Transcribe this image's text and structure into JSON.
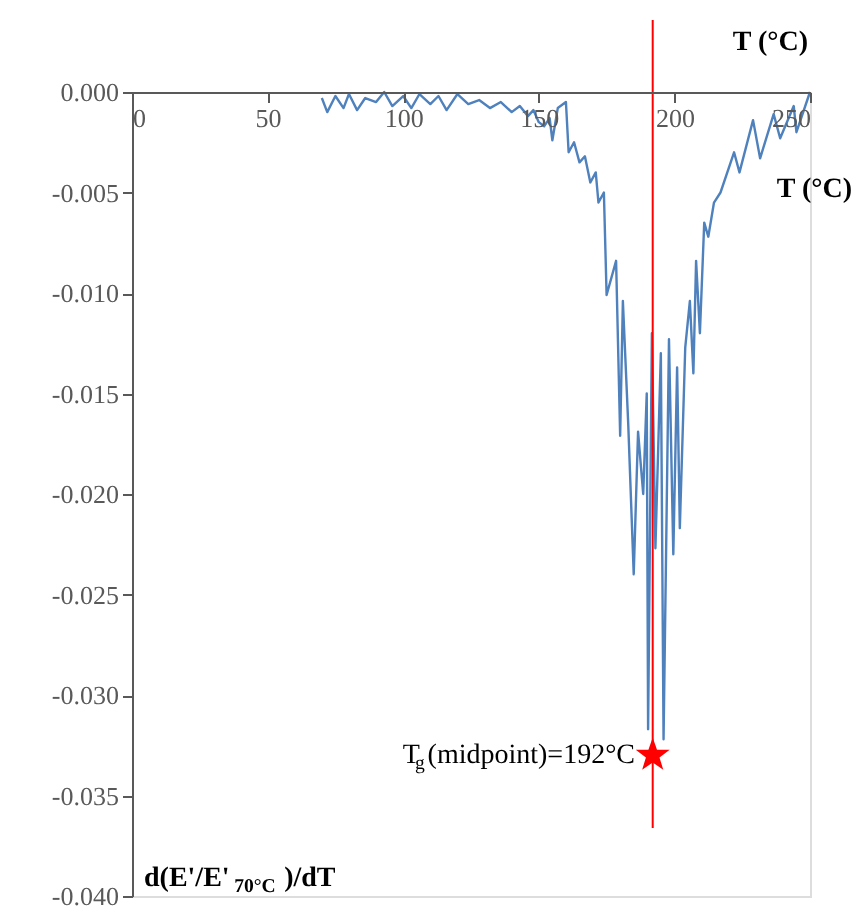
{
  "chart_data": {
    "type": "line",
    "xlabel": "T (°C)",
    "x2label": "T (°C)",
    "ylabel": "d(E'/E'$_{70°C}$)/dT",
    "xlim": [
      0,
      250
    ],
    "xticks": [
      0,
      50,
      100,
      150,
      200,
      250
    ],
    "ylim": [
      -0.04,
      0.0
    ],
    "yticks": [
      {
        "value": -0.04,
        "label": "-0.040"
      },
      {
        "value": -0.035,
        "label": "-0.035"
      },
      {
        "value": -0.03,
        "label": "-0.030"
      },
      {
        "value": -0.025,
        "label": "-0.025"
      },
      {
        "value": -0.02,
        "label": "-0.020"
      },
      {
        "value": -0.015,
        "label": "-0.015"
      },
      {
        "value": -0.01,
        "label": "-0.010"
      },
      {
        "value": -0.005,
        "label": "-0.005"
      },
      {
        "value": 0.0,
        "label": "0.000"
      }
    ],
    "grid": false,
    "line_style": "solid",
    "marker": "none",
    "series": [
      {
        "color": "#4f81bd",
        "x": [
          70,
          72,
          75,
          78,
          80,
          83,
          86,
          90,
          93,
          96,
          100,
          103,
          106,
          110,
          113,
          116,
          120,
          124,
          128,
          132,
          136,
          140,
          143,
          146,
          148,
          150,
          152,
          154,
          155,
          157,
          160,
          161,
          163,
          165,
          167,
          169,
          171,
          172,
          174,
          175,
          178.5,
          180,
          181,
          183,
          185,
          186.6,
          188.5,
          189.8,
          190.3,
          191.7,
          193,
          195,
          196,
          198,
          199.6,
          201,
          202,
          204,
          205.7,
          207,
          208,
          209.4,
          211,
          212.5,
          214.6,
          217,
          222,
          224,
          229,
          231.6,
          236.6,
          239,
          244,
          245,
          250
        ],
        "values": [
          -0.0003,
          -0.001,
          -0.0002,
          -0.0008,
          -0.0001,
          -0.0009,
          -0.0003,
          -0.0005,
          0.0,
          -0.0007,
          -0.0002,
          -0.0008,
          -0.0001,
          -0.0006,
          -0.0002,
          -0.0009,
          -0.0001,
          -0.0006,
          -0.0004,
          -0.0008,
          -0.0005,
          -0.001,
          -0.0007,
          -0.0012,
          -0.0009,
          -0.0015,
          -0.0017,
          -0.0013,
          -0.0024,
          -0.0008,
          -0.0005,
          -0.003,
          -0.0025,
          -0.0035,
          -0.0032,
          -0.0045,
          -0.004,
          -0.0055,
          -0.005,
          -0.0101,
          -0.0084,
          -0.0171,
          -0.0104,
          -0.0166,
          -0.024,
          -0.0169,
          -0.02,
          -0.015,
          -0.0317,
          -0.012,
          -0.0227,
          -0.013,
          -0.0322,
          -0.0123,
          -0.023,
          -0.0137,
          -0.0217,
          -0.0127,
          -0.0104,
          -0.014,
          -0.0084,
          -0.012,
          -0.0065,
          -0.0072,
          -0.0055,
          -0.005,
          -0.003,
          -0.004,
          -0.0014,
          -0.0033,
          -0.0011,
          -0.0023,
          -0.0007,
          -0.002,
          0.0
        ]
      }
    ],
    "ref_lines": [
      {
        "axis": "x",
        "value": 192,
        "color": "#ff0000"
      }
    ],
    "annotations": [
      {
        "text": "T$_{g}$(midpoint)=192°C",
        "x": 192,
        "y": -0.033
      }
    ]
  }
}
